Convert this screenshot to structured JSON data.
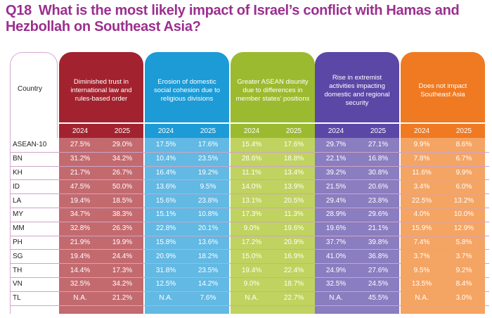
{
  "title": {
    "qnum": "Q18",
    "text": "What is the most likely impact of Israel’s conflict with Hamas and Hezbollah on Southeast Asia?"
  },
  "chart_data": {
    "type": "table",
    "row_header": "Country",
    "years": [
      "2024",
      "2025"
    ],
    "columns": [
      {
        "label": "Diminished trust in international law and rules-based order",
        "color": "#a2232f",
        "light": "#c36a6f"
      },
      {
        "label": "Erosion of domestic social cohesion due to religious divisions",
        "color": "#1c9bd6",
        "light": "#62b9e3"
      },
      {
        "label": "Greater ASEAN disunity due to differences in member states’ positions",
        "color": "#9cba2f",
        "light": "#c0d25f"
      },
      {
        "label": "Rise in extremist activities impacting domestic and regional security",
        "color": "#5a47a6",
        "light": "#8a7dc0"
      },
      {
        "label": "Does not impact Southeast Asia",
        "color": "#ef7a22",
        "light": "#f4a463"
      }
    ],
    "rows": [
      {
        "country": "ASEAN-10",
        "values": [
          "27.5%",
          "29.0%",
          "17.5%",
          "17.6%",
          "15.4%",
          "17.6%",
          "29.7%",
          "27.1%",
          "9.9%",
          "8.6%"
        ]
      },
      {
        "country": "BN",
        "values": [
          "31.2%",
          "34.2%",
          "10.4%",
          "23.5%",
          "28.6%",
          "18.8%",
          "22.1%",
          "16.8%",
          "7.8%",
          "6.7%"
        ]
      },
      {
        "country": "KH",
        "values": [
          "21.7%",
          "26.7%",
          "16.4%",
          "19.2%",
          "11.1%",
          "13.4%",
          "39.2%",
          "30.8%",
          "11.6%",
          "9.9%"
        ]
      },
      {
        "country": "ID",
        "values": [
          "47.5%",
          "50.0%",
          "13.6%",
          "9.5%",
          "14.0%",
          "13.9%",
          "21.5%",
          "20.6%",
          "3.4%",
          "6.0%"
        ]
      },
      {
        "country": "LA",
        "values": [
          "19.4%",
          "18.5%",
          "15.6%",
          "23.8%",
          "13.1%",
          "20.5%",
          "29.4%",
          "23.8%",
          "22.5%",
          "13.2%"
        ]
      },
      {
        "country": "MY",
        "values": [
          "34.7%",
          "38.3%",
          "15.1%",
          "10.8%",
          "17.3%",
          "11.3%",
          "28.9%",
          "29.6%",
          "4.0%",
          "10.0%"
        ]
      },
      {
        "country": "MM",
        "values": [
          "32.8%",
          "26.3%",
          "22.8%",
          "20.1%",
          "9.0%",
          "19.6%",
          "19.6%",
          "21.1%",
          "15.9%",
          "12.9%"
        ]
      },
      {
        "country": "PH",
        "values": [
          "21.9%",
          "19.9%",
          "15.8%",
          "13.6%",
          "17.2%",
          "20.9%",
          "37.7%",
          "39.8%",
          "7.4%",
          "5.8%"
        ]
      },
      {
        "country": "SG",
        "values": [
          "19.4%",
          "24.4%",
          "20.9%",
          "18.2%",
          "15.0%",
          "16.9%",
          "41.0%",
          "36.8%",
          "3.7%",
          "3.7%"
        ]
      },
      {
        "country": "TH",
        "values": [
          "14.4%",
          "17.3%",
          "31.8%",
          "23.5%",
          "19.4%",
          "22.4%",
          "24.9%",
          "27.6%",
          "9.5%",
          "9.2%"
        ]
      },
      {
        "country": "VN",
        "values": [
          "32.5%",
          "34.2%",
          "12.5%",
          "14.2%",
          "9.0%",
          "18.7%",
          "32.5%",
          "24.5%",
          "13.5%",
          "8.4%"
        ]
      },
      {
        "country": "TL",
        "values": [
          "N.A.",
          "21.2%",
          "N.A.",
          "7.6%",
          "N.A.",
          "22.7%",
          "N.A.",
          "45.5%",
          "N.A.",
          "3.0%"
        ]
      }
    ]
  }
}
